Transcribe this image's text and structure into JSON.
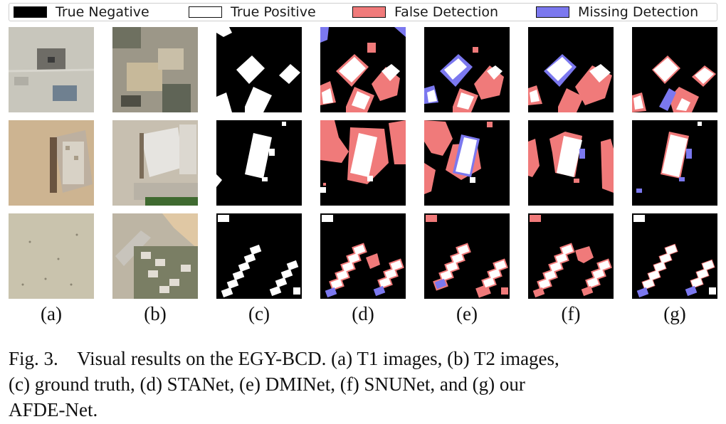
{
  "legend": {
    "items": [
      {
        "label": "True Negative",
        "color": "#000000"
      },
      {
        "label": "True Positive",
        "color": "#ffffff"
      },
      {
        "label": "False Detection",
        "color": "#f07a7a"
      },
      {
        "label": "Missing Detection",
        "color": "#7b78ef"
      }
    ]
  },
  "columns": [
    {
      "label": "(a)"
    },
    {
      "label": "(b)"
    },
    {
      "label": "(c)"
    },
    {
      "label": "(d)"
    },
    {
      "label": "(e)"
    },
    {
      "label": "(f)"
    },
    {
      "label": "(g)"
    }
  ],
  "caption": {
    "line1": "Fig. 3.    Visual results on the EGY-BCD. (a) T1 images, (b) T2 images,",
    "line2": "(c) ground truth, (d) STANet, (e) DMINet, (f) SNUNet, and (g) our",
    "line3": "AFDE-Net."
  }
}
